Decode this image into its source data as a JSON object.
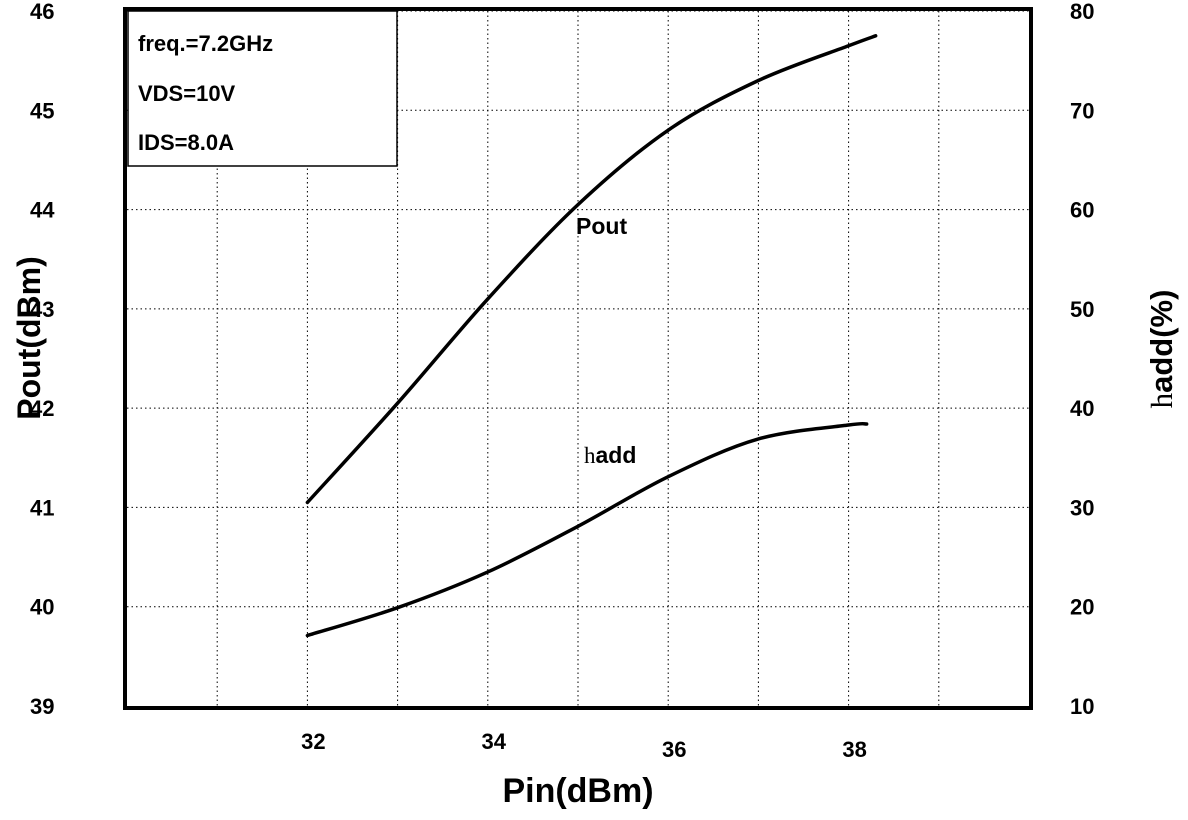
{
  "chart_data": {
    "type": "line",
    "conditions": [
      "freq.=7.2GHz",
      "VDS=10V",
      "IDS=8.0A"
    ],
    "xlabel": "Pin(dBm)",
    "ylabel_left": "Pout(dBm)",
    "ylabel_right": {
      "symbol": "h",
      "text": "add(%)"
    },
    "xlim": [
      30,
      40
    ],
    "xticks": [
      32,
      34,
      36,
      38
    ],
    "ylim_left": [
      39,
      46
    ],
    "yticks_left": [
      39,
      40,
      41,
      42,
      43,
      44,
      45,
      46
    ],
    "ylim_right": [
      10,
      80
    ],
    "yticks_right": [
      10,
      20,
      30,
      40,
      50,
      60,
      70,
      80
    ],
    "grid": true,
    "series": [
      {
        "name": "Pout",
        "axis": "left",
        "x": [
          32,
          33,
          34,
          35,
          36,
          37,
          38,
          38.3
        ],
        "y": [
          41.05,
          42.05,
          43.1,
          44.05,
          44.8,
          45.3,
          45.65,
          45.75
        ]
      },
      {
        "name_parts": {
          "symbol": "h",
          "text": "add"
        },
        "axis": "right",
        "x": [
          32,
          33,
          34,
          35,
          36,
          37,
          38,
          38.2
        ],
        "y": [
          17.1,
          19.9,
          23.5,
          28.1,
          33.1,
          36.9,
          38.3,
          38.4
        ]
      }
    ]
  }
}
